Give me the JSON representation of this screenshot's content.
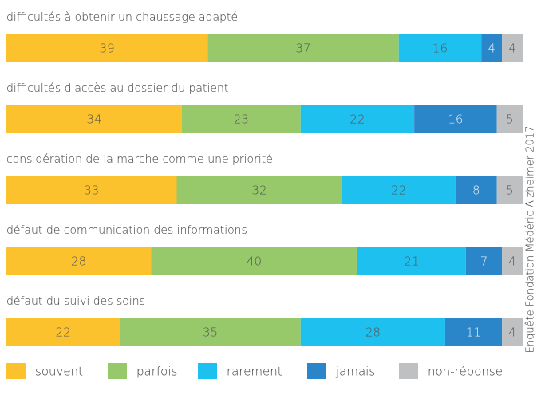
{
  "chart_data": {
    "type": "stacked-bar",
    "categories": [
      "difficultés à obtenir un chaussage adapté",
      "difficultés d'accès au dossier du patient",
      "considération de la marche comme une priorité",
      "défaut de communication des informations",
      "défaut du suivi des soins"
    ],
    "series": [
      {
        "name": "souvent",
        "color": "#fcc22d",
        "values": [
          39,
          34,
          33,
          28,
          22
        ]
      },
      {
        "name": "parfois",
        "color": "#97c96a",
        "values": [
          37,
          23,
          32,
          40,
          35
        ]
      },
      {
        "name": "rarement",
        "color": "#1ec0ef",
        "values": [
          16,
          22,
          22,
          21,
          28
        ]
      },
      {
        "name": "jamais",
        "color": "#2a85c9",
        "values": [
          4,
          16,
          8,
          7,
          11
        ]
      },
      {
        "name": "non-réponse",
        "color": "#bfc0c2",
        "values": [
          4,
          5,
          5,
          4,
          4
        ]
      }
    ],
    "source": "Enquête Fondation Médéric Alzheimer 2017"
  }
}
